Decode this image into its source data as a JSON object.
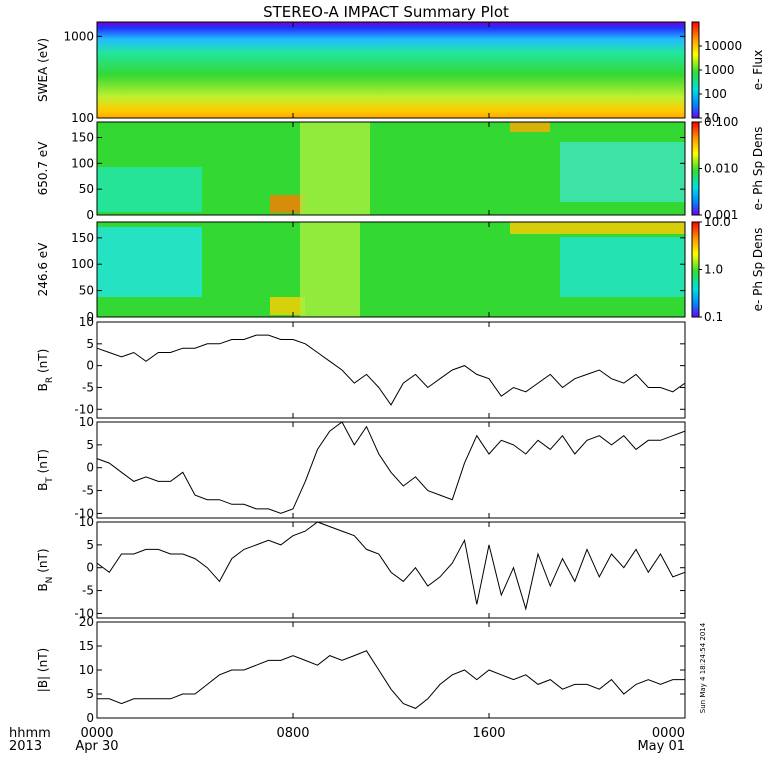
{
  "title": "STEREO-A IMPACT Summary Plot",
  "timestamp": "Sun May 4 18:24:54 2014",
  "time_axis": {
    "row1_labels": [
      "hhmm",
      "0000",
      "0800",
      "1600",
      "0000"
    ],
    "row2_labels": [
      "2013",
      "Apr 30",
      "",
      "",
      "May 01"
    ],
    "ticks_hours": [
      0,
      8,
      16,
      24
    ]
  },
  "colors": {
    "line": "#000000",
    "spectrogram_base": "#33d833"
  },
  "chart_data": [
    {
      "type": "heatmap",
      "ylabel": "SWEA (eV)",
      "ylim": [
        100,
        1500
      ],
      "yscale": "log",
      "y_ticks": [
        "1000",
        "100"
      ],
      "colorbar": {
        "label": "e- Flux",
        "ticks": [
          "10000",
          "1000",
          "100",
          "10"
        ],
        "scale": "log",
        "range": [
          10,
          100000
        ]
      }
    },
    {
      "type": "heatmap",
      "ylabel": "650.7 eV",
      "ylim": [
        0,
        180
      ],
      "y_ticks": [
        "150",
        "100",
        "50",
        "0"
      ],
      "colorbar": {
        "label": "e- Ph Sp Dens",
        "ticks": [
          "0.100",
          "0.010",
          "0.001"
        ],
        "scale": "log",
        "range": [
          0.001,
          0.1
        ]
      }
    },
    {
      "type": "heatmap",
      "ylabel": "246.6 eV",
      "ylim": [
        0,
        180
      ],
      "y_ticks": [
        "150",
        "100",
        "50",
        "0"
      ],
      "colorbar": {
        "label": "e- Ph Sp Dens",
        "ticks": [
          "10.0",
          "1.0",
          "0.1"
        ],
        "scale": "log",
        "range": [
          0.1,
          10
        ]
      }
    },
    {
      "type": "line",
      "ylabel": "B",
      "ylabel_sub": "R",
      "ylabel_unit": "(nT)",
      "ylim": [
        -12,
        10
      ],
      "y_ticks": [
        "10",
        "5",
        "0",
        "-5",
        "-10"
      ],
      "x_hours": [
        0,
        0.5,
        1,
        1.5,
        2,
        2.5,
        3,
        3.5,
        4,
        4.5,
        5,
        5.5,
        6,
        6.5,
        7,
        7.5,
        8,
        8.5,
        9,
        9.5,
        10,
        10.5,
        11,
        11.5,
        12,
        12.5,
        13,
        13.5,
        14,
        14.5,
        15,
        15.5,
        16,
        16.5,
        17,
        17.5,
        18,
        18.5,
        19,
        19.5,
        20,
        20.5,
        21,
        21.5,
        22,
        22.5,
        23,
        23.5,
        24
      ],
      "values": [
        4,
        3,
        2,
        3,
        1,
        3,
        3,
        4,
        4,
        5,
        5,
        6,
        6,
        7,
        7,
        6,
        6,
        5,
        3,
        1,
        -1,
        -4,
        -2,
        -5,
        -9,
        -4,
        -2,
        -5,
        -3,
        -1,
        0,
        -2,
        -3,
        -7,
        -5,
        -6,
        -4,
        -2,
        -5,
        -3,
        -2,
        -1,
        -3,
        -4,
        -2,
        -5,
        -5,
        -6,
        -4
      ]
    },
    {
      "type": "line",
      "ylabel": "B",
      "ylabel_sub": "T",
      "ylabel_unit": "(nT)",
      "ylim": [
        -11,
        10
      ],
      "y_ticks": [
        "10",
        "5",
        "0",
        "-5",
        "-10"
      ],
      "x_hours": [
        0,
        0.5,
        1,
        1.5,
        2,
        2.5,
        3,
        3.5,
        4,
        4.5,
        5,
        5.5,
        6,
        6.5,
        7,
        7.5,
        8,
        8.5,
        9,
        9.5,
        10,
        10.5,
        11,
        11.5,
        12,
        12.5,
        13,
        13.5,
        14,
        14.5,
        15,
        15.5,
        16,
        16.5,
        17,
        17.5,
        18,
        18.5,
        19,
        19.5,
        20,
        20.5,
        21,
        21.5,
        22,
        22.5,
        23,
        23.5,
        24
      ],
      "values": [
        2,
        1,
        -1,
        -3,
        -2,
        -3,
        -3,
        -1,
        -6,
        -7,
        -7,
        -8,
        -8,
        -9,
        -9,
        -10,
        -9,
        -3,
        4,
        8,
        10,
        5,
        9,
        3,
        -1,
        -4,
        -2,
        -5,
        -6,
        -7,
        1,
        7,
        3,
        6,
        5,
        3,
        6,
        4,
        7,
        3,
        6,
        7,
        5,
        7,
        4,
        6,
        6,
        7,
        8
      ]
    },
    {
      "type": "line",
      "ylabel": "B",
      "ylabel_sub": "N",
      "ylabel_unit": "(nT)",
      "ylim": [
        -11,
        10
      ],
      "y_ticks": [
        "10",
        "5",
        "0",
        "-5",
        "-10"
      ],
      "x_hours": [
        0,
        0.5,
        1,
        1.5,
        2,
        2.5,
        3,
        3.5,
        4,
        4.5,
        5,
        5.5,
        6,
        6.5,
        7,
        7.5,
        8,
        8.5,
        9,
        9.5,
        10,
        10.5,
        11,
        11.5,
        12,
        12.5,
        13,
        13.5,
        14,
        14.5,
        15,
        15.5,
        16,
        16.5,
        17,
        17.5,
        18,
        18.5,
        19,
        19.5,
        20,
        20.5,
        21,
        21.5,
        22,
        22.5,
        23,
        23.5,
        24
      ],
      "values": [
        1,
        -1,
        3,
        3,
        4,
        4,
        3,
        3,
        2,
        0,
        -3,
        2,
        4,
        5,
        6,
        5,
        7,
        8,
        10,
        9,
        8,
        7,
        4,
        3,
        -1,
        -3,
        0,
        -4,
        -2,
        1,
        6,
        -8,
        5,
        -6,
        0,
        -9,
        3,
        -4,
        2,
        -3,
        4,
        -2,
        3,
        0,
        4,
        -1,
        3,
        -2,
        -1
      ]
    },
    {
      "type": "line",
      "ylabel": "|B| (nT)",
      "ylim": [
        0,
        20
      ],
      "y_ticks": [
        "20",
        "15",
        "10",
        "5",
        "0"
      ],
      "x_hours": [
        0,
        0.5,
        1,
        1.5,
        2,
        2.5,
        3,
        3.5,
        4,
        4.5,
        5,
        5.5,
        6,
        6.5,
        7,
        7.5,
        8,
        8.5,
        9,
        9.5,
        10,
        10.5,
        11,
        11.5,
        12,
        12.5,
        13,
        13.5,
        14,
        14.5,
        15,
        15.5,
        16,
        16.5,
        17,
        17.5,
        18,
        18.5,
        19,
        19.5,
        20,
        20.5,
        21,
        21.5,
        22,
        22.5,
        23,
        23.5,
        24
      ],
      "values": [
        4,
        4,
        3,
        4,
        4,
        4,
        4,
        5,
        5,
        7,
        9,
        10,
        10,
        11,
        12,
        12,
        13,
        12,
        11,
        13,
        12,
        13,
        14,
        10,
        6,
        3,
        2,
        4,
        7,
        9,
        10,
        8,
        10,
        9,
        8,
        9,
        7,
        8,
        6,
        7,
        7,
        6,
        8,
        5,
        7,
        8,
        7,
        8,
        8
      ]
    }
  ]
}
